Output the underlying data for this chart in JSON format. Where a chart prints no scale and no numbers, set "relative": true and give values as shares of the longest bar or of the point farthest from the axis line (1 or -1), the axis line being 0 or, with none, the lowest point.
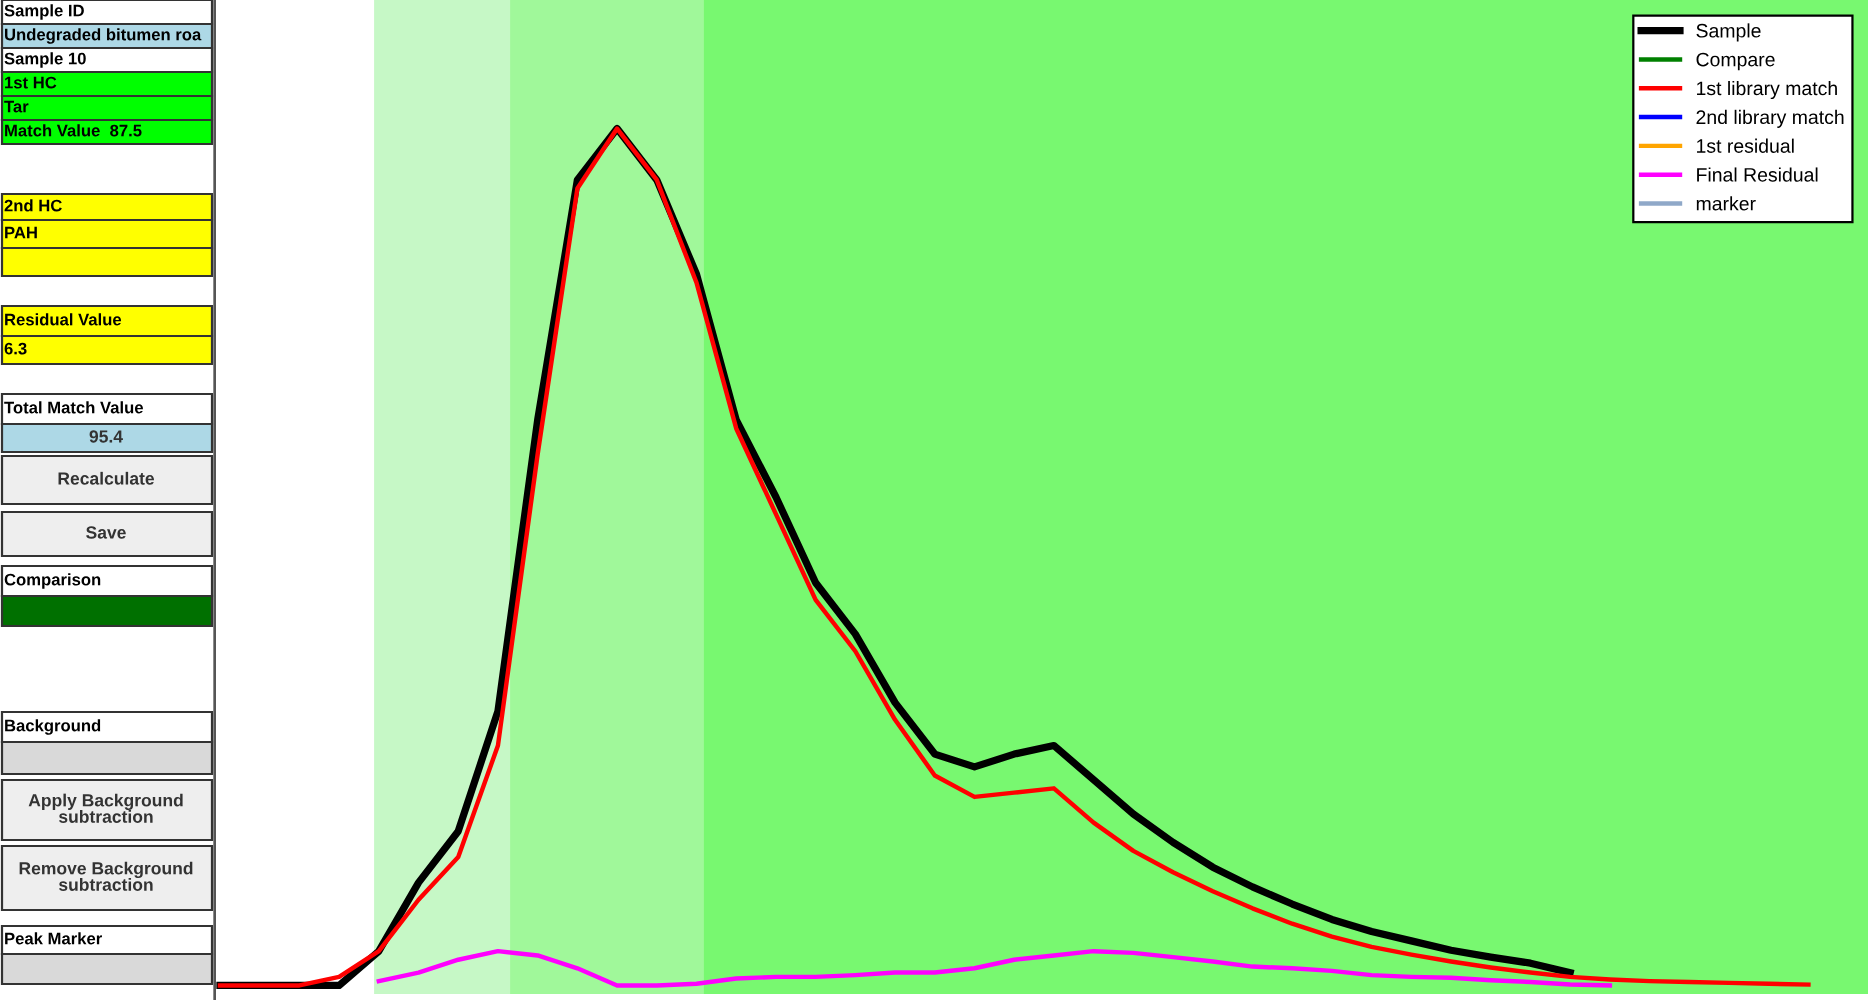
{
  "chart_data": [
    {
      "type": "other",
      "annotations": [
        "Sample ID",
        "Undegraded bitumen roa",
        "Sample 10",
        "1st HC",
        "Tar",
        "Match Value  87.5",
        "2nd HC",
        "PAH",
        "Residual Value",
        "6.3",
        "Total Match Value",
        "95.4",
        "Recalculate",
        "Save",
        "Comparison",
        "Background",
        "Apply Background\nsubtraction",
        "Remove Background\nsubtraction",
        "Peak Marker"
      ],
      "colors": [
        "#ffffff",
        "#add8e6",
        "#ffffff",
        "#00ff00",
        "#00ff00",
        "#00ff00",
        "#ffff00",
        "#ffff00",
        "#ffff00",
        "#ffff00",
        "#ffffff",
        "#add8e6",
        "#eeeeee",
        "#eeeeee",
        "#ffffff",
        "#ffffff",
        "#eeeeee",
        "#eeeeee",
        "#ffffff"
      ]
    },
    {
      "type": "line",
      "relative": true,
      "legend": "top right",
      "marker": "none",
      "line_style": "solid",
      "categories": [
        null,
        null,
        null,
        null,
        null,
        null,
        null,
        null,
        null,
        null,
        null,
        null,
        null,
        null,
        null,
        null,
        null,
        null,
        null,
        null,
        null,
        null,
        null,
        null,
        null,
        null,
        null,
        null,
        null,
        null,
        null,
        null,
        null,
        null,
        null,
        null,
        null,
        null,
        null,
        null,
        null,
        null
      ],
      "series": [
        {
          "name": "Sample",
          "color": "#000000",
          "values": [
            0,
            0,
            0,
            0,
            0.04,
            0.12,
            0.18,
            0.32,
            0.66,
            0.94,
            1.0,
            0.94,
            0.83,
            0.66,
            0.57,
            0.47,
            0.41,
            0.33,
            0.27,
            0.255,
            0.27,
            0.28,
            0.24,
            0.2,
            0.167,
            0.138,
            0.115,
            0.095,
            0.077,
            0.063,
            0.052,
            0.041,
            0.033,
            0.026,
            0.015,
            null,
            null,
            null,
            null,
            null,
            null,
            null
          ]
        },
        {
          "name": "Compare",
          "color": "#008000",
          "values": [
            null,
            null,
            null,
            null,
            null,
            null,
            null,
            null,
            null,
            null,
            null,
            null,
            null,
            null,
            null,
            null,
            null,
            null,
            null,
            null,
            null,
            null,
            null,
            null,
            null,
            null,
            null,
            null,
            null,
            null,
            null,
            null,
            null,
            null,
            null,
            null,
            null,
            null,
            null,
            null,
            null,
            null
          ]
        },
        {
          "name": "1st library match",
          "color": "#ff0000",
          "values": [
            0,
            0,
            0,
            0.01,
            0.04,
            0.1,
            0.15,
            0.28,
            0.62,
            0.93,
            1.0,
            0.94,
            0.82,
            0.65,
            0.55,
            0.45,
            0.39,
            0.31,
            0.245,
            0.22,
            0.225,
            0.23,
            0.19,
            0.157,
            0.132,
            0.11,
            0.09,
            0.072,
            0.057,
            0.045,
            0.036,
            0.028,
            0.021,
            0.015,
            0.01,
            0.007,
            0.005,
            0.004,
            0.003,
            0.002,
            0.001,
            null
          ]
        },
        {
          "name": "2nd library match",
          "color": "#0000ff",
          "values": [
            null,
            null,
            null,
            null,
            null,
            null,
            null,
            null,
            null,
            null,
            null,
            null,
            null,
            null,
            null,
            null,
            null,
            null,
            null,
            null,
            null,
            null,
            null,
            null,
            null,
            null,
            null,
            null,
            null,
            null,
            null,
            null,
            null,
            null,
            null,
            null,
            null,
            null,
            null,
            null,
            null,
            null
          ]
        },
        {
          "name": "1st residual",
          "color": "#ffa500",
          "values": [
            null,
            null,
            null,
            null,
            null,
            null,
            null,
            null,
            null,
            null,
            null,
            null,
            null,
            null,
            null,
            null,
            null,
            null,
            null,
            null,
            null,
            null,
            null,
            null,
            null,
            null,
            null,
            null,
            null,
            null,
            null,
            null,
            null,
            null,
            null,
            null,
            null,
            null,
            null,
            null,
            null,
            null
          ]
        },
        {
          "name": "Final Residual",
          "color": "#ff00ff",
          "values": [
            null,
            null,
            null,
            null,
            0.005,
            0.015,
            0.03,
            0.04,
            0.035,
            0.02,
            0,
            0,
            0.002,
            0.008,
            0.01,
            0.01,
            0.012,
            0.015,
            0.015,
            0.02,
            0.03,
            0.035,
            0.04,
            0.038,
            0.033,
            0.028,
            0.022,
            0.02,
            0.017,
            0.012,
            0.01,
            0.009,
            0.006,
            0.004,
            0.001,
            0,
            null,
            null,
            null,
            null,
            null,
            null
          ]
        },
        {
          "name": "marker",
          "color": "#8fa8c8",
          "values": [
            null,
            null,
            null,
            null,
            null,
            null,
            null,
            null,
            null,
            null,
            null,
            null,
            null,
            null,
            null,
            null,
            null,
            null,
            null,
            null,
            null,
            null,
            null,
            null,
            null,
            null,
            null,
            null,
            null,
            null,
            null,
            null,
            null,
            null,
            null,
            null,
            null,
            null,
            null,
            null,
            null,
            null
          ]
        }
      ]
    }
  ]
}
